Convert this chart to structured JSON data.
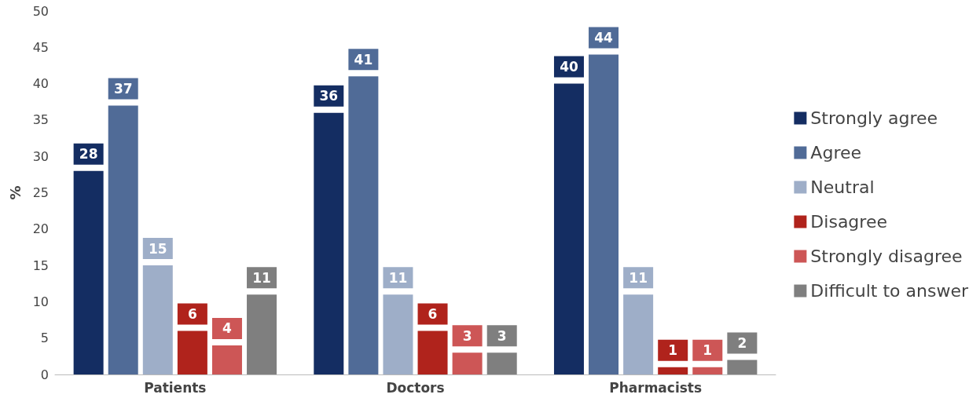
{
  "chart_data": {
    "type": "bar",
    "ylabel": "%",
    "categories": [
      "Patients",
      "Doctors",
      "Pharmacists"
    ],
    "series": [
      {
        "name": "Strongly agree",
        "color": "#142d62",
        "values": [
          28,
          36,
          40
        ]
      },
      {
        "name": "Agree",
        "color": "#506b97",
        "values": [
          37,
          41,
          44
        ]
      },
      {
        "name": "Neutral",
        "color": "#9eaec8",
        "values": [
          15,
          11,
          11
        ]
      },
      {
        "name": "Disagree",
        "color": "#b0231c",
        "values": [
          6,
          6,
          1
        ]
      },
      {
        "name": "Strongly disagree",
        "color": "#cd5656",
        "values": [
          4,
          3,
          1
        ]
      },
      {
        "name": "Difficult to answer",
        "color": "#7f7f7f",
        "values": [
          11,
          3,
          2
        ]
      }
    ],
    "ylim": [
      0,
      50
    ],
    "yticks": [
      0,
      5,
      10,
      15,
      20,
      25,
      30,
      35,
      40,
      45,
      50
    ],
    "grid": false,
    "legend": "right",
    "data_labels": true
  }
}
